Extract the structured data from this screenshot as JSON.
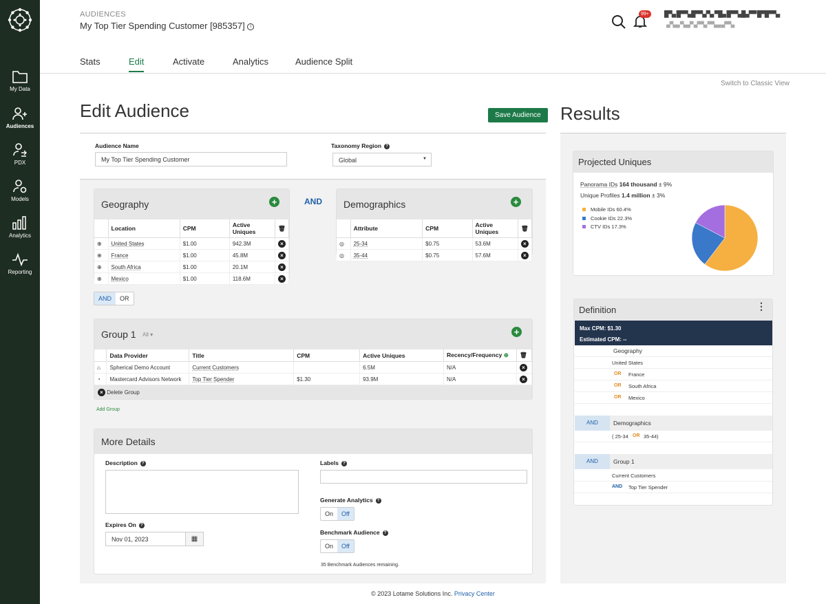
{
  "sidebar": {
    "items": [
      {
        "label": "My Data",
        "icon": "folder-icon"
      },
      {
        "label": "Audiences",
        "icon": "add-person-icon"
      },
      {
        "label": "PDX",
        "icon": "exchange-person-icon"
      },
      {
        "label": "Models",
        "icon": "person-gear-icon"
      },
      {
        "label": "Analytics",
        "icon": "bar-chart-icon"
      },
      {
        "label": "Reporting",
        "icon": "pulse-icon"
      }
    ]
  },
  "header": {
    "section": "AUDIENCES",
    "audience_title": "My Top Tier Spending Customer [985357]",
    "notification_count": "99+",
    "account_line1": "█▀▄ █▀▀▄█▀▀▄▀▄ ▀█▄ █▀▀▄█▄▀▀ █▀█▀▀▄",
    "account_line2": "▄▀▄▄ ▀▄▄▀ ▄▀▀▄ ▀▀▄▄ ▄▀▀▄"
  },
  "tabs": [
    "Stats",
    "Edit",
    "Activate",
    "Analytics",
    "Audience Split"
  ],
  "switch_view": "Switch to Classic View",
  "edit": {
    "title": "Edit Audience",
    "save_label": "Save Audience",
    "name_label": "Audience Name",
    "name_value": "My Top Tier Spending Customer",
    "region_label": "Taxonomy Region",
    "region_value": "Global"
  },
  "geography": {
    "title": "Geography",
    "headers": [
      "Location",
      "CPM",
      "Active Uniques"
    ],
    "rows": [
      {
        "location": "United States",
        "cpm": "$1.00",
        "uniques": "942.3M"
      },
      {
        "location": "France",
        "cpm": "$1.00",
        "uniques": "45.8M"
      },
      {
        "location": "South Africa",
        "cpm": "$1.00",
        "uniques": "20.1M"
      },
      {
        "location": "Mexico",
        "cpm": "$1.00",
        "uniques": "118.6M"
      }
    ]
  },
  "and_label": "AND",
  "demographics": {
    "title": "Demographics",
    "headers": [
      "Attribute",
      "CPM",
      "Active Uniques"
    ],
    "rows": [
      {
        "attribute": "25-34",
        "cpm": "$0.75",
        "uniques": "53.6M"
      },
      {
        "attribute": "35-44",
        "cpm": "$0.75",
        "uniques": "57.6M"
      }
    ]
  },
  "andor": {
    "and": "AND",
    "or": "OR"
  },
  "group1": {
    "title": "Group 1",
    "filter": "All",
    "headers": [
      "Data Provider",
      "Title",
      "CPM",
      "Active Uniques",
      "Recency/Frequency"
    ],
    "rows": [
      {
        "provider": "Spherical Demo Account",
        "title": "Current Customers",
        "cpm": "",
        "uniques": "6.5M",
        "recency": "N/A"
      },
      {
        "provider": "Mastercard Advisors Network",
        "title": "Top Tier Spender",
        "cpm": "$1.30",
        "uniques": "93.9M",
        "recency": "N/A"
      }
    ],
    "delete_label": "Delete Group",
    "add_group": "Add Group"
  },
  "details": {
    "title": "More Details",
    "description_label": "Description",
    "labels_label": "Labels",
    "expires_label": "Expires On",
    "expires_value": "Nov 01, 2023",
    "analytics_label": "Generate Analytics",
    "benchmark_label": "Benchmark Audience",
    "on": "On",
    "off": "Off",
    "benchmark_note": "35 Benchmark Audiences remaining."
  },
  "results": {
    "title": "Results",
    "projected_title": "Projected Uniques",
    "panorama_label": "Panorama IDs",
    "panorama_value": "164 thousand",
    "panorama_err": "± 9%",
    "profiles_label": "Unique Profiles",
    "profiles_value": "1.4 million",
    "profiles_err": "± 3%",
    "legend": [
      {
        "label": "Mobile IDs 60.4%",
        "color": "#f5b041"
      },
      {
        "label": "Cookie IDs 22.3%",
        "color": "#3a78c9"
      },
      {
        "label": "CTV IDs 17.3%",
        "color": "#a46ee0"
      }
    ]
  },
  "chart_data": {
    "type": "pie",
    "categories": [
      "Mobile IDs",
      "Cookie IDs",
      "CTV IDs"
    ],
    "values": [
      60.4,
      22.3,
      17.3
    ],
    "colors": [
      "#f5b041",
      "#3a78c9",
      "#a46ee0"
    ]
  },
  "definition": {
    "title": "Definition",
    "max_cpm": "Max CPM: $1.30",
    "est_cpm": "Estimated CPM: --",
    "geo_title": "Geography",
    "geo_items": [
      "United States",
      "France",
      "South Africa",
      "Mexico"
    ],
    "or": "OR",
    "and": "AND",
    "demo_title": "Demographics",
    "demo_a": "( 25-34",
    "demo_b": "35-44)",
    "group_title": "Group 1",
    "group_a": "Current Customers",
    "group_b": "Top Tier Spender"
  },
  "footer": {
    "text": "© 2023 Lotame Solutions Inc.",
    "link": "Privacy Center"
  }
}
